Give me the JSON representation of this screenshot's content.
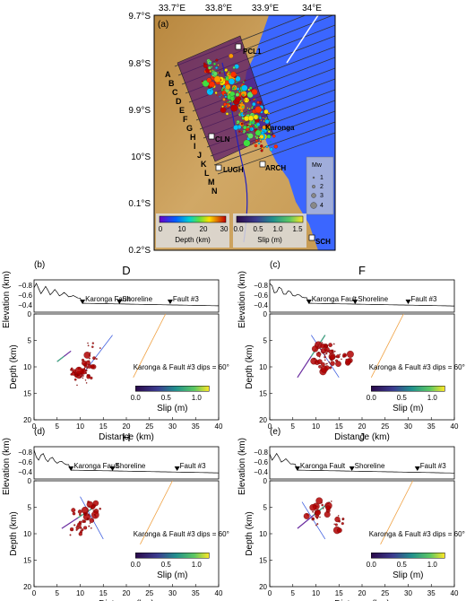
{
  "map": {
    "panel_label": "(a)",
    "lon_ticks": [
      "33.7°E",
      "33.8°E",
      "33.9°E",
      "34°E"
    ],
    "lat_ticks": [
      "9.7°S",
      "9.8°S",
      "9.9°S",
      "10°S",
      "0.1°S",
      "0.2°S"
    ],
    "profile_letters": [
      "A",
      "B",
      "C",
      "D",
      "E",
      "F",
      "G",
      "H",
      "I",
      "J",
      "K",
      "L",
      "M",
      "N"
    ],
    "stations": [
      "PCL1",
      "Karonga",
      "CLN",
      "ARCH",
      "LUGH",
      "SCH"
    ],
    "magnitude_legend": {
      "title": "Mw",
      "values": [
        "1",
        "2",
        "3",
        "4"
      ]
    },
    "depth_bar": {
      "ticks": [
        "0",
        "10",
        "20",
        "30"
      ],
      "label": "Depth (km)"
    },
    "slip_bar": {
      "ticks": [
        "0.0",
        "0.5",
        "1.0",
        "1.5"
      ],
      "label": "Slip (m)"
    }
  },
  "profiles": [
    {
      "panel": "(b)",
      "title": "D",
      "fault": "Karonga Fault",
      "shoreline": "Shoreline",
      "fault3": "Fault #3",
      "dips": "Karonga & Fault #3 dips = 60°",
      "slip_ticks": [
        "0.0",
        "0.5",
        "1.0"
      ],
      "slip_label": "Slip (m)"
    },
    {
      "panel": "(c)",
      "title": "F",
      "fault": "Karonga Fault",
      "shoreline": "Shoreline",
      "fault3": "Fault #3",
      "dips": "Karonga & Fault #3 dips = 60°",
      "slip_ticks": [
        "0.0",
        "0.5",
        "1.0"
      ],
      "slip_label": "Slip (m)"
    },
    {
      "panel": "(d)",
      "title": "H",
      "fault": "Karonga Fault",
      "shoreline": "Shoreline",
      "fault3": "Fault #3",
      "dips": "Karonga & Fault #3 dips = 60°",
      "slip_ticks": [
        "0.0",
        "0.5",
        "1.0"
      ],
      "slip_label": "Slip (m)"
    },
    {
      "panel": "(e)",
      "title": "J",
      "fault": "Karonga Fault",
      "shoreline": "Shoreline",
      "fault3": "Fault #3",
      "dips": "Karonga & Fault #3 dips = 60°",
      "slip_ticks": [
        "0.0",
        "0.5",
        "1.0"
      ],
      "slip_label": "Slip (m)"
    }
  ],
  "axes": {
    "elevation_label": "Elevation (km)",
    "elevation_ticks": [
      "−0.8",
      "−0.6",
      "−0.4"
    ],
    "depth_label": "Depth (km)",
    "depth_ticks": [
      "0",
      "5",
      "10",
      "15",
      "20"
    ],
    "distance_label": "Distance (km)",
    "distance_ticks": [
      "0",
      "5",
      "10",
      "15",
      "20",
      "25",
      "30",
      "35",
      "40"
    ]
  },
  "colors": {
    "lake": "#3b66ff",
    "land": "#c9a055",
    "fault": "#7a4fd0"
  }
}
